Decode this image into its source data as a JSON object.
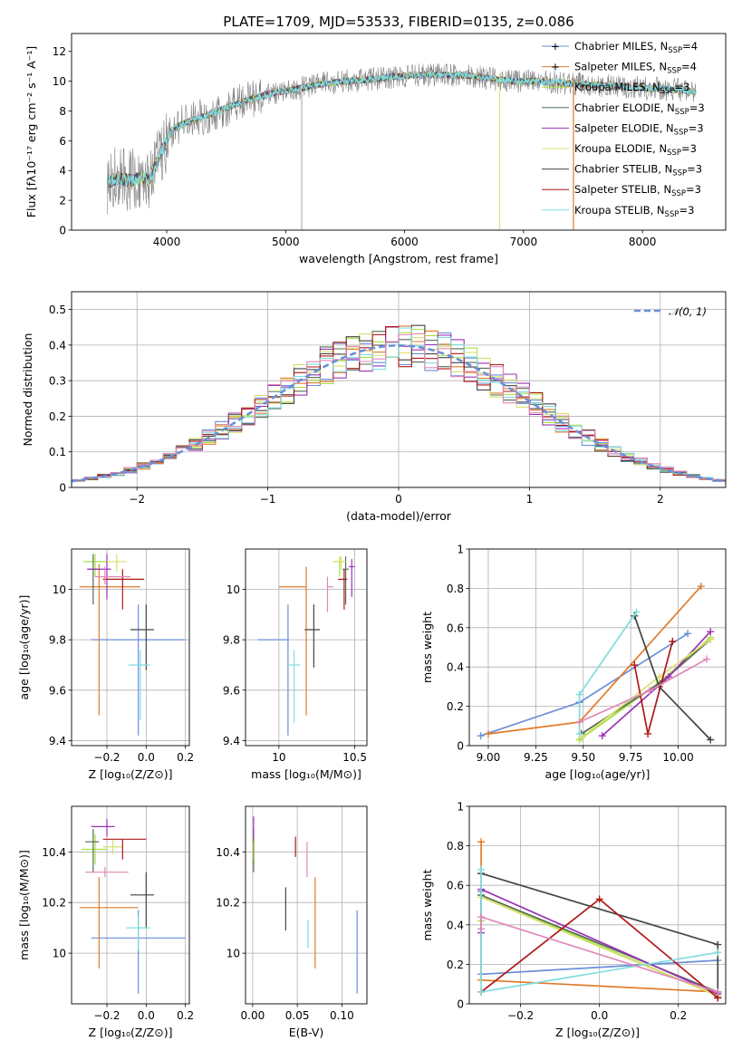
{
  "figure_title": "PLATE=1709, MJD=53533, FIBERID=0135, z=0.086",
  "model_colors": [
    "#6a8fd8",
    "#e07b2a",
    "#a8e040",
    "#556b55",
    "#9a33b5",
    "#d8e070",
    "#444444",
    "#b01818",
    "#80dde0",
    "#e088b8"
  ],
  "chart_data": [
    {
      "id": "spectrum",
      "type": "line",
      "title": "PLATE=1709, MJD=53533, FIBERID=0135, z=0.086",
      "xlabel": "wavelength [Angstrom, rest frame]",
      "ylabel": "Flux [fλ10⁻¹⁷ erg cm⁻² s⁻¹ A⁻¹]",
      "xlim": [
        3200,
        8700
      ],
      "ylim": [
        0,
        13.2
      ],
      "xticks": [
        4000,
        5000,
        6000,
        7000,
        8000
      ],
      "yticks": [
        0,
        2,
        4,
        6,
        8,
        10,
        12
      ],
      "grid": false,
      "legend_position": "right",
      "continuum": {
        "x": [
          3500,
          3600,
          3700,
          3800,
          3850,
          3950,
          4050,
          4150,
          4300,
          4500,
          4700,
          4900,
          5100,
          5300,
          5500,
          5700,
          5900,
          6100,
          6300,
          6500,
          6700,
          6900,
          7100,
          7300,
          7500,
          7700,
          7900,
          8100,
          8300,
          8450
        ],
        "y": [
          3.2,
          3.5,
          3.3,
          3.6,
          3.3,
          5.2,
          6.8,
          7.2,
          7.6,
          8.2,
          8.8,
          9.2,
          9.5,
          9.8,
          10.0,
          10.1,
          10.3,
          10.4,
          10.4,
          10.4,
          10.2,
          10.0,
          10.0,
          9.9,
          9.8,
          9.7,
          9.6,
          9.5,
          9.4,
          9.3
        ]
      },
      "legend": [
        {
          "model": "Chabrier MILES",
          "nssp": "4"
        },
        {
          "model": "Salpeter MILES",
          "nssp": "4"
        },
        {
          "model": "Kroupa MILES",
          "nssp": "3"
        },
        {
          "model": "Chabrier ELODIE",
          "nssp": "3"
        },
        {
          "model": "Salpeter ELODIE",
          "nssp": "3"
        },
        {
          "model": "Kroupa ELODIE",
          "nssp": "3"
        },
        {
          "model": "Chabrier STELIB",
          "nssp": "3"
        },
        {
          "model": "Salpeter STELIB",
          "nssp": "3"
        },
        {
          "model": "Kroupa STELIB",
          "nssp": "3"
        }
      ]
    },
    {
      "id": "residuals",
      "type": "line",
      "xlabel": "(data-model)/error",
      "ylabel": "Normed distribution",
      "xlim": [
        -2.5,
        2.5
      ],
      "ylim": [
        0,
        0.55
      ],
      "xticks": [
        -2,
        -1,
        0,
        1,
        2
      ],
      "yticks": [
        0.0,
        0.1,
        0.2,
        0.3,
        0.4,
        0.5
      ],
      "grid": true,
      "legend_position": "top-right",
      "legend_label": "𝒩(0, 1)",
      "bin_width": 0.1
    },
    {
      "id": "age_vs_Z",
      "type": "scatter",
      "xlabel": "Z [log₁₀(Z/Z⊙)]",
      "ylabel": "age  [log₁₀(age/yr)]",
      "xlim": [
        -0.38,
        0.22
      ],
      "ylim": [
        9.38,
        10.16
      ],
      "xticks": [
        -0.2,
        0.0,
        0.2
      ],
      "xticklabels": [
        "−0.2",
        "0.0",
        "0.2"
      ],
      "yticks": [
        9.4,
        9.6,
        9.8,
        10.0
      ],
      "grid": true,
      "points": [
        {
          "x": -0.04,
          "y": 9.8,
          "xerr": [
            0.24,
            0.24
          ],
          "yerr": [
            0.38,
            0.14
          ]
        },
        {
          "x": -0.24,
          "y": 10.01,
          "xerr": [
            0.1,
            0.21
          ],
          "yerr": [
            0.51,
            0.09
          ]
        },
        {
          "x": -0.26,
          "y": 10.11,
          "xerr": [
            0.06,
            0.06
          ],
          "yerr": [
            0.06,
            0.03
          ]
        },
        {
          "x": -0.27,
          "y": 10.08,
          "xerr": [
            0.03,
            0.03
          ],
          "yerr": [
            0.14,
            0.06
          ]
        },
        {
          "x": -0.2,
          "y": 10.08,
          "xerr": [
            0.1,
            0.02
          ],
          "yerr": [
            0.12,
            0.06
          ]
        },
        {
          "x": -0.15,
          "y": 10.11,
          "xerr": [
            0.05,
            0.05
          ],
          "yerr": [
            0.04,
            0.03
          ]
        },
        {
          "x": 0.0,
          "y": 9.84,
          "xerr": [
            0.08,
            0.04
          ],
          "yerr": [
            0.16,
            0.1
          ]
        },
        {
          "x": -0.12,
          "y": 10.04,
          "xerr": [
            0.1,
            0.11
          ],
          "yerr": [
            0.12,
            0.04
          ]
        },
        {
          "x": -0.03,
          "y": 9.7,
          "xerr": [
            0.06,
            0.05
          ],
          "yerr": [
            0.22,
            0.06
          ]
        },
        {
          "x": -0.21,
          "y": 10.05,
          "xerr": [
            0.05,
            0.13
          ],
          "yerr": [
            0.03,
            0.04
          ]
        }
      ]
    },
    {
      "id": "age_vs_mass",
      "type": "scatter",
      "xlabel": "mass [log₁₀(M/M⊙)]",
      "ylabel": "",
      "xlim": [
        9.78,
        10.58
      ],
      "ylim": [
        9.38,
        10.16
      ],
      "xticks": [
        10.0,
        10.5
      ],
      "yticks": [
        9.4,
        9.6,
        9.8,
        10.0
      ],
      "grid": true,
      "points": [
        {
          "x": 10.06,
          "y": 9.8,
          "xerr": [
            0.2,
            0.0
          ],
          "yerr": [
            0.38,
            0.14
          ]
        },
        {
          "x": 10.18,
          "y": 10.01,
          "xerr": [
            0.18,
            0.0
          ],
          "yerr": [
            0.51,
            0.08
          ]
        },
        {
          "x": 10.4,
          "y": 10.11,
          "xerr": [
            0.04,
            0.04
          ],
          "yerr": [
            0.06,
            0.02
          ]
        },
        {
          "x": 10.44,
          "y": 10.08,
          "xerr": [
            0.02,
            0.02
          ],
          "yerr": [
            0.14,
            0.05
          ]
        },
        {
          "x": 10.48,
          "y": 10.09,
          "xerr": [
            0.02,
            0.02
          ],
          "yerr": [
            0.12,
            0.03
          ]
        },
        {
          "x": 10.41,
          "y": 10.11,
          "xerr": [
            0.04,
            0.03
          ],
          "yerr": [
            0.03,
            0.02
          ]
        },
        {
          "x": 10.23,
          "y": 9.84,
          "xerr": [
            0.06,
            0.04
          ],
          "yerr": [
            0.15,
            0.1
          ]
        },
        {
          "x": 10.43,
          "y": 10.04,
          "xerr": [
            0.04,
            0.02
          ],
          "yerr": [
            0.12,
            0.04
          ]
        },
        {
          "x": 10.1,
          "y": 9.7,
          "xerr": [
            0.04,
            0.04
          ],
          "yerr": [
            0.23,
            0.06
          ]
        },
        {
          "x": 10.32,
          "y": 10.01,
          "xerr": [
            0.0,
            0.04
          ],
          "yerr": [
            0.1,
            0.04
          ]
        }
      ]
    },
    {
      "id": "weight_vs_age",
      "type": "line",
      "xlabel": "age  [log₁₀(age/yr)]",
      "ylabel": "mass weight",
      "xlim": [
        8.9,
        10.25
      ],
      "ylim": [
        0,
        1.0
      ],
      "xticks": [
        9.0,
        9.25,
        9.5,
        9.75,
        10.0
      ],
      "xticklabels": [
        "9.00",
        "9.25",
        "9.50",
        "9.75",
        "10.00"
      ],
      "yticks": [
        0.0,
        0.2,
        0.4,
        0.6,
        0.8,
        1.0
      ],
      "grid": true,
      "series": [
        {
          "x": [
            8.96,
            9.48,
            10.05
          ],
          "y": [
            0.05,
            0.22,
            0.57
          ]
        },
        {
          "x": [
            9.0,
            9.48,
            10.12
          ],
          "y": [
            0.06,
            0.12,
            0.81
          ]
        },
        {
          "x": [
            9.48,
            9.9,
            10.17
          ],
          "y": [
            0.03,
            0.32,
            0.55
          ]
        },
        {
          "x": [
            9.49,
            9.92,
            10.17
          ],
          "y": [
            0.06,
            0.33,
            0.54
          ]
        },
        {
          "x": [
            9.6,
            9.95,
            10.17
          ],
          "y": [
            0.05,
            0.35,
            0.58
          ]
        },
        {
          "x": [
            9.49,
            9.9,
            10.17
          ],
          "y": [
            0.04,
            0.35,
            0.54
          ]
        },
        {
          "x": [
            9.77,
            9.9,
            10.17
          ],
          "y": [
            0.66,
            0.3,
            0.03
          ]
        },
        {
          "x": [
            9.77,
            9.84,
            9.97
          ],
          "y": [
            0.41,
            0.06,
            0.53
          ]
        },
        {
          "x": [
            9.48,
            9.48,
            9.78
          ],
          "y": [
            0.06,
            0.26,
            0.68
          ]
        },
        {
          "x": [
            9.48,
            9.85,
            10.15
          ],
          "y": [
            0.12,
            0.28,
            0.44
          ]
        }
      ]
    },
    {
      "id": "mass_vs_Z",
      "type": "scatter",
      "xlabel": "Z [log₁₀(Z/Z⊙)]",
      "ylabel": "mass [log₁₀(M/M⊙)]",
      "xlim": [
        -0.38,
        0.22
      ],
      "ylim": [
        9.8,
        10.58
      ],
      "xticks": [
        -0.2,
        0.0,
        0.2
      ],
      "xticklabels": [
        "−0.2",
        "0.0",
        "0.2"
      ],
      "yticks": [
        10.0,
        10.2,
        10.4
      ],
      "grid": true,
      "points": [
        {
          "x": -0.04,
          "y": 10.06,
          "xerr": [
            0.24,
            0.24
          ],
          "yerr": [
            0.22,
            0.11
          ]
        },
        {
          "x": -0.24,
          "y": 10.18,
          "xerr": [
            0.1,
            0.2
          ],
          "yerr": [
            0.24,
            0.12
          ]
        },
        {
          "x": -0.26,
          "y": 10.41,
          "xerr": [
            0.07,
            0.06
          ],
          "yerr": [
            0.06,
            0.06
          ]
        },
        {
          "x": -0.27,
          "y": 10.44,
          "xerr": [
            0.04,
            0.03
          ],
          "yerr": [
            0.12,
            0.05
          ]
        },
        {
          "x": -0.2,
          "y": 10.5,
          "xerr": [
            0.08,
            0.04
          ],
          "yerr": [
            0.04,
            0.03
          ]
        },
        {
          "x": -0.17,
          "y": 10.42,
          "xerr": [
            0.05,
            0.05
          ],
          "yerr": [
            0.03,
            0.03
          ]
        },
        {
          "x": 0.0,
          "y": 10.23,
          "xerr": [
            0.08,
            0.04
          ],
          "yerr": [
            0.13,
            0.09
          ]
        },
        {
          "x": -0.12,
          "y": 10.45,
          "xerr": [
            0.1,
            0.12
          ],
          "yerr": [
            0.08,
            0.0
          ]
        },
        {
          "x": -0.04,
          "y": 10.1,
          "xerr": [
            0.06,
            0.06
          ],
          "yerr": [
            0.09,
            0.05
          ]
        },
        {
          "x": -0.21,
          "y": 10.32,
          "xerr": [
            0.1,
            0.12
          ],
          "yerr": [
            0.02,
            0.02
          ]
        }
      ]
    },
    {
      "id": "mass_vs_ebv",
      "type": "scatter",
      "xlabel": "E(B-V)",
      "ylabel": "",
      "xlim": [
        -0.008,
        0.128
      ],
      "ylim": [
        9.8,
        10.58
      ],
      "xticks": [
        0.0,
        0.05,
        0.1
      ],
      "xticklabels": [
        "0.00",
        "0.05",
        "0.10"
      ],
      "yticks": [
        10.0,
        10.2,
        10.4
      ],
      "grid": true,
      "points": [
        {
          "x": 0.117,
          "y": 10.06,
          "xerr": [
            0,
            0
          ],
          "yerr": [
            0.22,
            0.11
          ]
        },
        {
          "x": 0.07,
          "y": 10.18,
          "xerr": [
            0,
            0
          ],
          "yerr": [
            0.24,
            0.12
          ]
        },
        {
          "x": 0.0,
          "y": 10.41,
          "xerr": [
            0,
            0
          ],
          "yerr": [
            0.06,
            0.05
          ]
        },
        {
          "x": 0.001,
          "y": 10.44,
          "xerr": [
            0,
            0
          ],
          "yerr": [
            0.12,
            0.05
          ]
        },
        {
          "x": 0.001,
          "y": 10.5,
          "xerr": [
            0,
            0
          ],
          "yerr": [
            0.05,
            0.04
          ]
        },
        {
          "x": 0.0,
          "y": 10.41,
          "xerr": [
            0,
            0
          ],
          "yerr": [
            0.04,
            0.03
          ]
        },
        {
          "x": 0.037,
          "y": 10.23,
          "xerr": [
            0,
            0
          ],
          "yerr": [
            0.14,
            0.03
          ]
        },
        {
          "x": 0.048,
          "y": 10.46,
          "xerr": [
            0,
            0
          ],
          "yerr": [
            0.08,
            0.0
          ]
        },
        {
          "x": 0.062,
          "y": 10.07,
          "xerr": [
            0,
            0
          ],
          "yerr": [
            0.05,
            0.06
          ]
        },
        {
          "x": 0.061,
          "y": 10.38,
          "xerr": [
            0,
            0
          ],
          "yerr": [
            0.08,
            0.06
          ]
        }
      ]
    },
    {
      "id": "weight_vs_Z",
      "type": "line",
      "xlabel": "Z [log₁₀(Z/Z⊙)]",
      "ylabel": "mass weight",
      "xlim": [
        -0.33,
        0.32
      ],
      "ylim": [
        0,
        1.0
      ],
      "xticks": [
        -0.2,
        0.0,
        0.2
      ],
      "xticklabels": [
        "−0.2",
        "0.0",
        "0.2"
      ],
      "yticks": [
        0.0,
        0.2,
        0.4,
        0.6,
        0.8,
        1.0
      ],
      "grid": true,
      "series": [
        {
          "x": [
            -0.3,
            -0.3,
            0.3
          ],
          "y": [
            0.57,
            0.15,
            0.22
          ]
        },
        {
          "x": [
            -0.3,
            -0.3,
            0.3
          ],
          "y": [
            0.82,
            0.12,
            0.06
          ]
        },
        {
          "x": [
            -0.3,
            -0.3,
            0.3
          ],
          "y": [
            0.42,
            0.55,
            0.04
          ]
        },
        {
          "x": [
            -0.3,
            0.3,
            0.3
          ],
          "y": [
            0.55,
            0.06,
            0.03
          ]
        },
        {
          "x": [
            -0.3,
            -0.3,
            0.3
          ],
          "y": [
            0.36,
            0.58,
            0.05
          ]
        },
        {
          "x": [
            -0.3,
            0.3,
            0.3
          ],
          "y": [
            0.54,
            0.04,
            0.04
          ]
        },
        {
          "x": [
            -0.3,
            0.3,
            0.3
          ],
          "y": [
            0.66,
            0.3,
            0.03
          ]
        },
        {
          "x": [
            -0.3,
            0.0,
            0.3
          ],
          "y": [
            0.06,
            0.53,
            0.03
          ]
        },
        {
          "x": [
            -0.3,
            -0.3,
            0.3
          ],
          "y": [
            0.68,
            0.06,
            0.26
          ]
        },
        {
          "x": [
            -0.3,
            -0.3,
            0.3
          ],
          "y": [
            0.38,
            0.44,
            0.06
          ]
        }
      ]
    }
  ]
}
